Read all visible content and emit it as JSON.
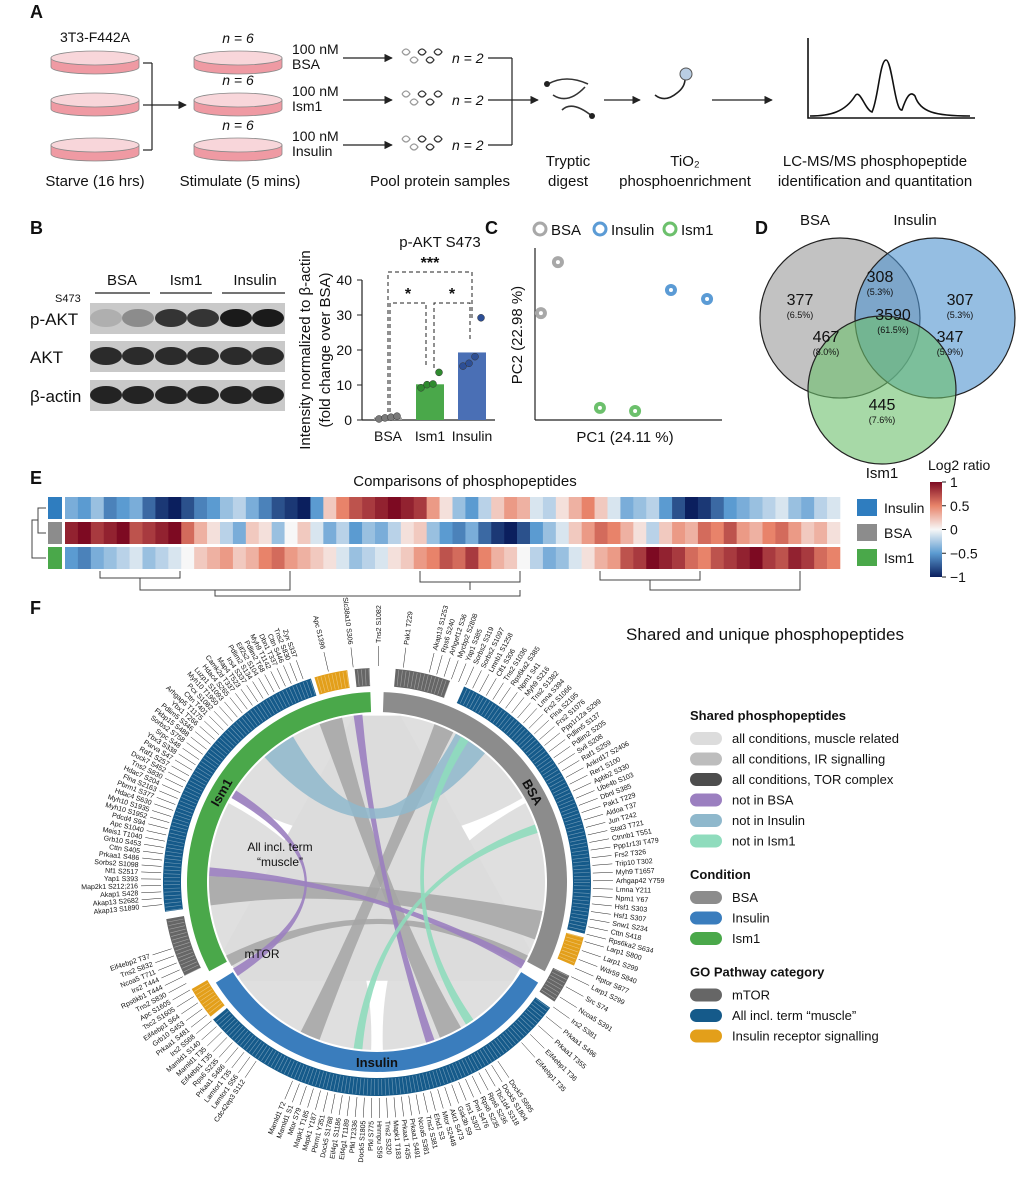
{
  "panel_labels": [
    "A",
    "B",
    "C",
    "D",
    "E",
    "F"
  ],
  "panel_a": {
    "cell_line": "3T3-F442A",
    "starve": "Starve (16 hrs)",
    "stimulate": "Stimulate (5 mins)",
    "stimuli": [
      {
        "n": "n = 6",
        "dose": "100 nM",
        "agent": "BSA"
      },
      {
        "n": "n = 6",
        "dose": "100 nM",
        "agent": "Ism1"
      },
      {
        "n": "n = 6",
        "dose": "100 nM",
        "agent": "Insulin"
      }
    ],
    "pool_n": [
      "n = 2",
      "n = 2",
      "n = 2"
    ],
    "pool": "Pool protein samples",
    "digest": [
      "Tryptic",
      "digest"
    ],
    "enrichment": [
      "TiO₂",
      "phosphoenrichment"
    ],
    "ms": [
      "LC-MS/MS phosphopeptide",
      "identification and quantitation"
    ]
  },
  "panel_b": {
    "blot": {
      "lanes": [
        "BSA",
        "Ism1",
        "Insulin"
      ],
      "site": "S473",
      "rows": [
        "p-AKT",
        "AKT",
        "β-actin"
      ]
    },
    "chart": {
      "type": "bar",
      "title": "p-AKT S473",
      "y_label": [
        "Intensity normalized to β-actin",
        "(fold change over BSA)"
      ],
      "categories": [
        "BSA",
        "Ism1",
        "Insulin"
      ],
      "values": [
        0.7,
        10.2,
        19.3
      ],
      "colors": [
        "#9d9d9d",
        "#4aa84a",
        "#4a6fb5"
      ],
      "points": [
        [
          0.3,
          0.6,
          0.8,
          1.1
        ],
        [
          9.2,
          10.1,
          10.3,
          13.6
        ],
        [
          15.4,
          16.2,
          18.1,
          29.2
        ]
      ],
      "point_colors": [
        "#7a7a7a",
        "#2f8a2f",
        "#2d4f96"
      ],
      "ylim": [
        0,
        40
      ],
      "yticks": [
        0,
        10,
        20,
        30,
        40
      ],
      "significance": [
        "***",
        "*",
        "*"
      ]
    }
  },
  "panel_c": {
    "type": "scatter",
    "series": [
      {
        "name": "BSA",
        "color": "#a8a8a8",
        "x": [
          0.32,
          1.24
        ],
        "y": [
          6.29,
          9.29
        ]
      },
      {
        "name": "Insulin",
        "color": "#5b9bd5",
        "x": [
          7.35,
          9.3
        ],
        "y": [
          7.65,
          7.12
        ]
      },
      {
        "name": "Ism1",
        "color": "#6cc06c",
        "x": [
          3.51,
          5.41
        ],
        "y": [
          0.71,
          0.53
        ]
      }
    ],
    "x_label": "PC1 (24.11 %)",
    "y_label": "PC2 (22.98 %)",
    "xlim": [
      0,
      10
    ],
    "ylim": [
      0,
      10
    ]
  },
  "panel_d": {
    "sets": [
      "BSA",
      "Insulin",
      "Ism1"
    ],
    "colors": [
      "#9a9a9a",
      "#4f92cf",
      "#6cc06c"
    ],
    "regions": [
      {
        "count": 377,
        "percent": "(6.5%)"
      },
      {
        "count": 308,
        "percent": "(5.3%)"
      },
      {
        "count": 307,
        "percent": "(5.3%)"
      },
      {
        "count": 3590,
        "percent": "(61.5%)"
      },
      {
        "count": 467,
        "percent": "(8.0%)"
      },
      {
        "count": 347,
        "percent": "(5.9%)"
      },
      {
        "count": 445,
        "percent": "(7.6%)"
      }
    ]
  },
  "panel_e": {
    "type": "heatmap",
    "title": "Comparisons of phosphopeptides",
    "rows": [
      {
        "name": "Insulin",
        "color": "#2f7dbf",
        "values": [
          -0.4,
          -0.5,
          -0.3,
          -0.6,
          -0.5,
          -0.4,
          -0.7,
          -0.9,
          -1,
          -0.8,
          -0.6,
          -0.5,
          -0.3,
          -0.2,
          -0.4,
          -0.6,
          -0.8,
          -0.9,
          -1,
          -0.5,
          0.2,
          0.5,
          0.7,
          0.8,
          0.9,
          1,
          0.9,
          0.8,
          0.4,
          0.1,
          -0.3,
          -0.5,
          -0.2,
          0.2,
          0.4,
          0.3,
          -0.1,
          -0.2,
          0.1,
          0.3,
          0.5,
          0.2,
          -0.1,
          -0.4,
          -0.3,
          -0.2,
          -0.5,
          -0.8,
          -1,
          -0.9,
          -0.7,
          -0.5,
          -0.4,
          -0.3,
          -0.2,
          -0.1,
          -0.3,
          -0.4,
          -0.2,
          -0.1
        ]
      },
      {
        "name": "BSA",
        "color": "#8c8c8c",
        "values": [
          0.9,
          1,
          0.8,
          0.9,
          1,
          0.7,
          0.8,
          0.9,
          1,
          0.6,
          0.3,
          0.1,
          -0.2,
          -0.4,
          0.2,
          0.1,
          -0.3,
          0,
          0.2,
          -0.1,
          -0.4,
          -0.2,
          -0.5,
          -0.3,
          -0.4,
          -0.2,
          0.1,
          0.2,
          -0.3,
          -0.5,
          -0.6,
          -0.4,
          -0.7,
          -0.9,
          -1,
          -0.8,
          -0.5,
          -0.3,
          -0.1,
          0.2,
          0.4,
          0.6,
          0.5,
          0.3,
          0.1,
          -0.2,
          0.2,
          0.4,
          0.3,
          0.6,
          0.5,
          0.7,
          0.4,
          0.3,
          0.5,
          0.6,
          0.4,
          0.2,
          0.3,
          0.1
        ]
      },
      {
        "name": "Ism1",
        "color": "#4aa84a",
        "values": [
          -0.5,
          -0.6,
          -0.4,
          -0.3,
          -0.2,
          -0.1,
          -0.3,
          -0.2,
          -0.1,
          0,
          0.2,
          0.3,
          0.4,
          0.2,
          0.3,
          0.5,
          0.6,
          0.4,
          0.3,
          0.2,
          0.1,
          -0.1,
          -0.3,
          -0.2,
          -0.1,
          0.1,
          0.2,
          0.4,
          0.5,
          0.7,
          0.6,
          0.8,
          0.5,
          0.3,
          0.2,
          0,
          -0.2,
          -0.4,
          -0.3,
          -0.1,
          0.1,
          0.3,
          0.4,
          0.7,
          0.8,
          1,
          0.9,
          0.8,
          0.6,
          0.5,
          0.7,
          0.8,
          0.9,
          1,
          0.8,
          0.7,
          0.9,
          0.8,
          0.6,
          0.5
        ]
      }
    ],
    "colorbar_title": "Log2 ratio",
    "clim": [
      -1,
      1
    ],
    "colors": [
      "#0b1f5e",
      "#5b9bd1",
      "#f7f7f7",
      "#e8836a",
      "#7d0a22"
    ],
    "colorbar_ticks": [
      1,
      0.5,
      0,
      {
        "value": -0.5,
        "label": "−0.5"
      },
      {
        "value": -1,
        "label": "−1"
      }
    ]
  },
  "panel_f": {
    "title": "Shared and unique phosphopeptides",
    "arc_labels": [
      "Ism1",
      "BSA",
      "Insulin"
    ],
    "arc_colors": [
      "#4aa84a",
      "#8c8c8c",
      "#3a7dbd"
    ],
    "inner_labels": [
      "All incl. term",
      "“muscle”",
      "mTOR"
    ],
    "legend": [
      {
        "heading": "Shared phosphopeptides",
        "items": [
          {
            "label": "all conditions, muscle related",
            "color": "#dcdcdc"
          },
          {
            "label": "all conditions, IR signalling",
            "color": "#bdbdbd"
          },
          {
            "label": "all conditions, TOR complex",
            "color": "#4d4d4d"
          },
          {
            "label": "not in BSA",
            "color": "#9b7fc0"
          },
          {
            "label": "not in Insulin",
            "color": "#8fb8cc"
          },
          {
            "label": "not in Ism1",
            "color": "#8fdcbd"
          }
        ]
      },
      {
        "heading": "Condition",
        "items": [
          {
            "label": "BSA",
            "color": "#8c8c8c"
          },
          {
            "label": "Insulin",
            "color": "#3a7dbd"
          },
          {
            "label": "Ism1",
            "color": "#4aa84a"
          }
        ]
      },
      {
        "heading": "GO Pathway category",
        "items": [
          {
            "label": "mTOR",
            "color": "#666666"
          },
          {
            "label": "All incl. term “muscle”",
            "color": "#155a8a"
          },
          {
            "label": "Insulin receptor signalling",
            "color": "#e39f1a"
          }
        ]
      }
    ],
    "gene_labels": [
      [
        "Akap13 S1890",
        "Akap13 S2682",
        "Akap1 S428",
        "Map2k1 S212;216",
        "Yap1 S393",
        "Nf1 S2517",
        "Sorbs2 S1098",
        "Prkaa1 S486",
        "Cttn S405",
        "Grb10 S453",
        "Meis1 T1040",
        "Apc S1040",
        "Pdcd4 S94",
        "Myh10 S1952",
        "Myh10 S1935",
        "Hdac4 S630",
        "Pbrm1 S377",
        "Flna S2163",
        "Hdac7 S204",
        "Tns2 S830",
        "Dock7 S452",
        "Raf1 S257",
        "Parva S47",
        "Ybx3 S338",
        "Srpc S48",
        "Sorbs2 S758",
        "Fkbp15 S488",
        "Pdlim5 S346",
        "Ybx1 T266",
        "Arhgap5 T1175",
        "Cttn T401",
        "Pcx S1082",
        "Myh10 T1950",
        "Luzp1 S1093",
        "Hdac4 S265",
        "Camk2d T337",
        "Map4 T523",
        "Irs4 S337",
        "Pdlim2 S134",
        "Eif2s2 S104",
        "Pdlim2 T68",
        "Myh9 T1142",
        "Dbn1 T337",
        "Cttn S446",
        "Tns2 S830",
        "Zyx S337"
      ],
      [
        "Apc S1396",
        "Slc38a10 S306",
        "Tns2 S1082",
        "Pak1 T229"
      ],
      [
        "Akap13 S1253",
        "Rps6 S240",
        "Arhgef12 S36",
        "Mycbp2 S2808",
        "Yap1 S385",
        "Sorbs2 S319",
        "Sorbs2 S1097",
        "Lmnb1 S1258",
        "Cfl1 S306",
        "Tns2 S1036",
        "Rps6ka2 S385",
        "Npm1 S41",
        "Myh9 S216",
        "Tns2 S1382",
        "Lmna S394",
        "Frs2 S1066",
        "Flna S2195",
        "Frs2 S1076",
        "Ppp1r12a S299",
        "Pdlim5 S137",
        "Pdlim2 S205",
        "Svil S208",
        "Raf1 S259",
        "Ankrd17 S2406",
        "Rer1 S100",
        "Apbb2 S330",
        "Ube4b S103",
        "Dbnl S385",
        "Pak1 T229",
        "Aldoa T37",
        "Jun T242",
        "Stat3 T721",
        "Ctnnb1 T551",
        "Ppp1r13l T479",
        "Frs2 T326",
        "Trip10 T302",
        "Myh9 T1657",
        "Arhgap42 Y759",
        "Lmna Y211",
        "Npm1 Y67",
        "Hsf1 S303",
        "Hsf1 S307",
        "Snw1 S234",
        "Cttn S418",
        "Rps6ka2 S634"
      ],
      [
        "Larp1 S800",
        "Larp1 S299",
        "Wdr59 S840",
        "Rptor S877",
        "Larp1 S299"
      ],
      [
        "Src S74",
        "Ncoa5 S391",
        "Irs2 S381",
        "Prkaa1 S496",
        "Prkaa1 T355",
        "Eif4ebp1 T36",
        "Eif4ebp1 T35"
      ],
      [
        "Dock5 S695",
        "Dock5 S1804",
        "Tbc1d4 S318",
        "Rps6 S236",
        "Rps6 S235",
        "Pml S476",
        "Irs1 S307",
        "Gsk3b S9",
        "Akt1 S473",
        "Mtor S2448",
        "Ehd1 S3",
        "Tns2 S381",
        "Ncoa5 S381",
        "Prkaa1 S491",
        "Prkaa1 T435",
        "Mapk1 T183",
        "Tns2 S320",
        "Hnrnpu S59",
        "Pfkl S775",
        "Dock5 S1805",
        "Pfkl T2336",
        "Eif4g1 T1189",
        "Eif4g1 S1186",
        "Dock5 S1788",
        "Pbrm1 Y351",
        "Mapk1 Y187",
        "Mapk1 T185",
        "Mtor S79",
        "Mamld1 S1",
        "Mamld1 T2"
      ],
      [
        "Cdc42ep3 S112",
        "Lamtor1 S56",
        "Lamtor1 T35",
        "Prkaa1 S486",
        "Rps6 S235",
        "Eif4ebp1 T35",
        "Mamld1 T35",
        "Mamld1 S140",
        "Irs2 S568",
        "Prkaa1 S481",
        "Grb10 S453",
        "Eif4ebp1 S64",
        "Tsc2 S1605",
        "Apc S1605",
        "Tns2 S830",
        "Rps6kb1 T444",
        "Irs2 T444",
        "Ncoa5 T711",
        "Tns2 S832",
        "Eif4ebp2 T37"
      ]
    ]
  }
}
